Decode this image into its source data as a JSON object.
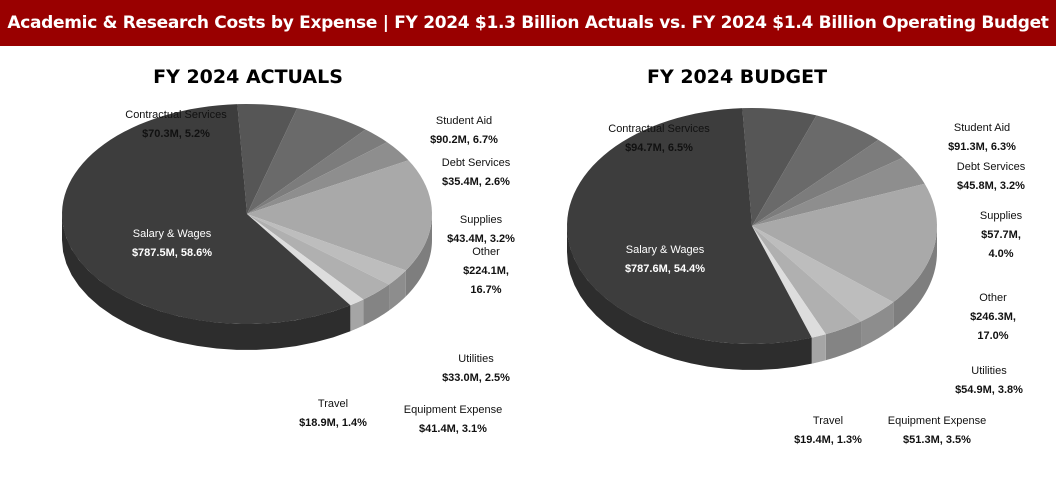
{
  "header": {
    "title": "Academic & Research Costs by Expense | FY 2024 $1.3 Billion Actuals vs. FY 2024 $1.4 Billion Operating Budget"
  },
  "chart_data": [
    {
      "type": "pie",
      "title": "FY 2024 ACTUALS",
      "slices": [
        {
          "name": "Contractual Services",
          "value_label": "$70.3M, 5.2%",
          "value": 70.3,
          "pct": 5.2,
          "color": "#565656"
        },
        {
          "name": "Student Aid",
          "value_label": "$90.2M, 6.7%",
          "value": 90.2,
          "pct": 6.7,
          "color": "#6a6a6a"
        },
        {
          "name": "Debt Services",
          "value_label": "$35.4M, 2.6%",
          "value": 35.4,
          "pct": 2.6,
          "color": "#7c7c7c"
        },
        {
          "name": "Supplies",
          "value_label": "$43.4M, 3.2%",
          "value": 43.4,
          "pct": 3.2,
          "color": "#8e8e8e"
        },
        {
          "name": "Other",
          "value_label": "$224.1M, 16.7%",
          "value": 224.1,
          "pct": 16.7,
          "color": "#a9a9a9"
        },
        {
          "name": "Utilities",
          "value_label": "$33.0M, 2.5%",
          "value": 33.0,
          "pct": 2.5,
          "color": "#bdbdbd"
        },
        {
          "name": "Equipment Expense",
          "value_label": "$41.4M, 3.1%",
          "value": 41.4,
          "pct": 3.1,
          "color": "#b0b0b0"
        },
        {
          "name": "Travel",
          "value_label": "$18.9M, 1.4%",
          "value": 18.9,
          "pct": 1.4,
          "color": "#dddddd"
        },
        {
          "name": "Salary & Wages",
          "value_label": "$787.5M, 58.6%",
          "value": 787.5,
          "pct": 58.6,
          "color": "#3d3d3d"
        }
      ]
    },
    {
      "type": "pie",
      "title": "FY 2024 BUDGET",
      "slices": [
        {
          "name": "Contractual Services",
          "value_label": "$94.7M, 6.5%",
          "value": 94.7,
          "pct": 6.5,
          "color": "#565656"
        },
        {
          "name": "Student Aid",
          "value_label": "$91.3M, 6.3%",
          "value": 91.3,
          "pct": 6.3,
          "color": "#6a6a6a"
        },
        {
          "name": "Debt Services",
          "value_label": "$45.8M, 3.2%",
          "value": 45.8,
          "pct": 3.2,
          "color": "#7c7c7c"
        },
        {
          "name": "Supplies",
          "value_label": "$57.7M, 4.0%",
          "value": 57.7,
          "pct": 4.0,
          "color": "#8e8e8e"
        },
        {
          "name": "Other",
          "value_label": "$246.3M, 17.0%",
          "value": 246.3,
          "pct": 17.0,
          "color": "#a9a9a9"
        },
        {
          "name": "Utilities",
          "value_label": "$54.9M, 3.8%",
          "value": 54.9,
          "pct": 3.8,
          "color": "#bdbdbd"
        },
        {
          "name": "Equipment Expense",
          "value_label": "$51.3M, 3.5%",
          "value": 51.3,
          "pct": 3.5,
          "color": "#b0b0b0"
        },
        {
          "name": "Travel",
          "value_label": "$19.4M, 1.3%",
          "value": 19.4,
          "pct": 1.3,
          "color": "#dddddd"
        },
        {
          "name": "Salary & Wages",
          "value_label": "$787.6M, 54.4%",
          "value": 787.6,
          "pct": 54.4,
          "color": "#3d3d3d"
        }
      ]
    }
  ]
}
